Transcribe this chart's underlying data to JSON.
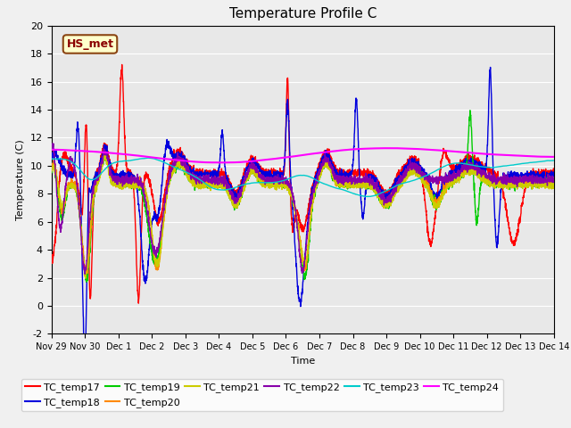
{
  "title": "Temperature Profile C",
  "xlabel": "Time",
  "ylabel": "Temperature (C)",
  "ylim": [
    -2,
    20
  ],
  "xlim": [
    0,
    15
  ],
  "plot_bg_color": "#e8e8e8",
  "fig_bg_color": "#f0f0f0",
  "annotation_text": "HS_met",
  "annotation_color": "#8B0000",
  "annotation_bg": "#ffffcc",
  "annotation_border": "#8B4513",
  "series_colors": {
    "TC_temp17": "#ff0000",
    "TC_temp18": "#0000dd",
    "TC_temp19": "#00cc00",
    "TC_temp20": "#ff8800",
    "TC_temp21": "#cccc00",
    "TC_temp22": "#8800aa",
    "TC_temp23": "#00cccc",
    "TC_temp24": "#ff00ff"
  },
  "xtick_labels": [
    "Nov 29",
    "Nov 30",
    "Dec 1",
    "Dec 2",
    "Dec 3",
    "Dec 4",
    "Dec 5",
    "Dec 6",
    "Dec 7",
    "Dec 8",
    "Dec 9",
    "Dec 10",
    "Dec 11",
    "Dec 12",
    "Dec 13",
    "Dec 14"
  ],
  "xtick_positions": [
    0,
    1,
    2,
    3,
    4,
    5,
    6,
    7,
    8,
    9,
    10,
    11,
    12,
    13,
    14,
    15
  ],
  "ytick_positions": [
    -2,
    0,
    2,
    4,
    6,
    8,
    10,
    12,
    14,
    16,
    18,
    20
  ],
  "grid_color": "#ffffff",
  "linewidth": 1.0,
  "legend_fontsize": 8,
  "title_fontsize": 11
}
